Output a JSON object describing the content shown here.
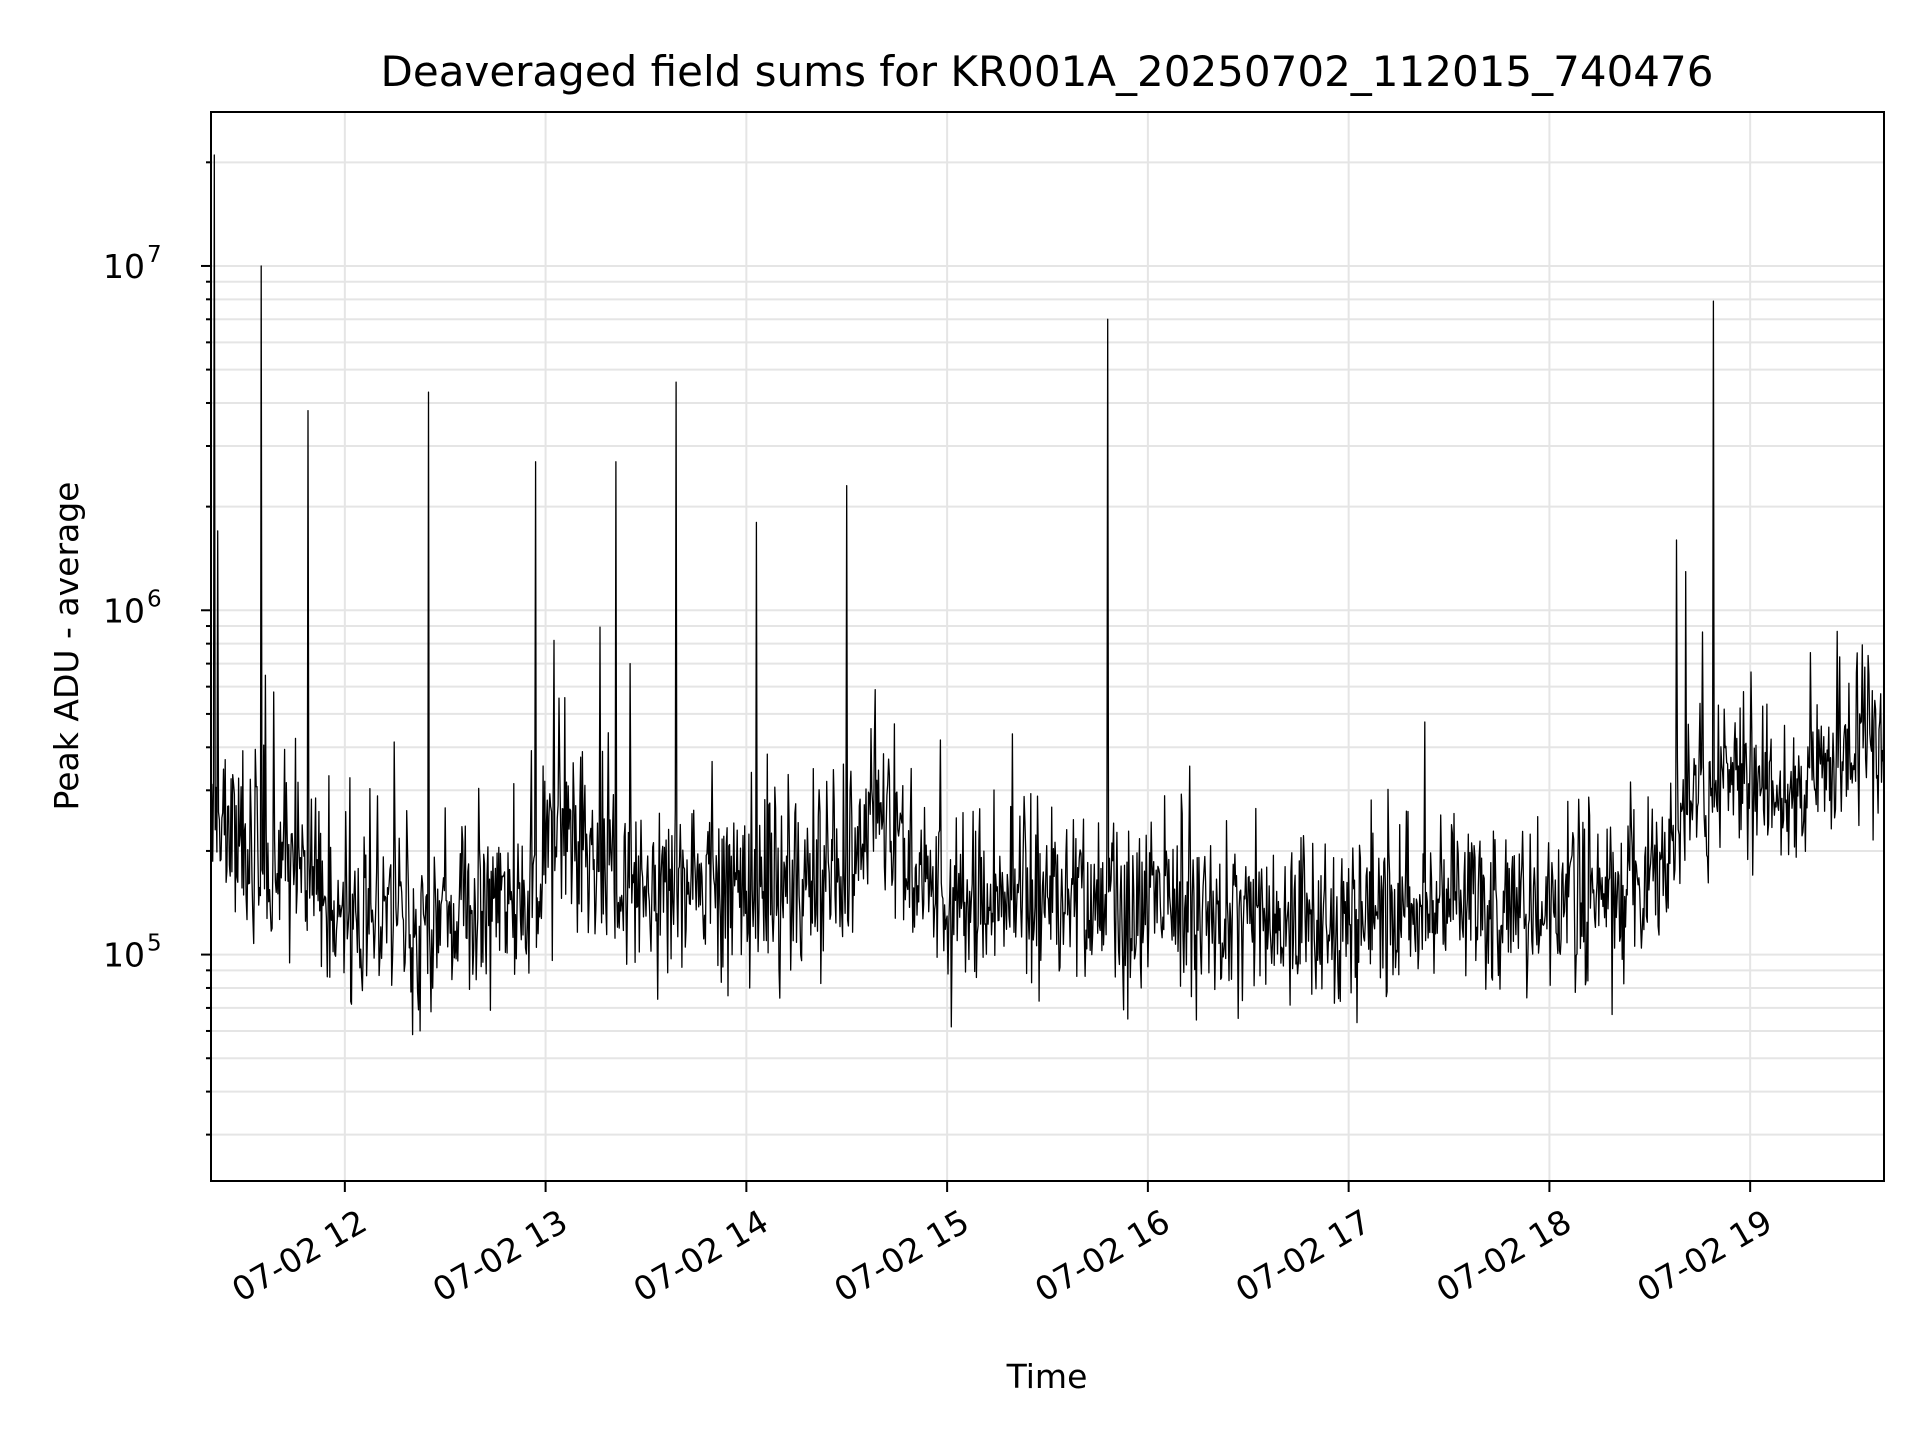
{
  "chart_data": {
    "type": "line",
    "title": "Deaveraged field sums for KR001A_20250702_112015_740476",
    "xlabel": "Time",
    "ylabel": "Peak ADU - average",
    "y_scale": "log",
    "x_tick_labels": [
      "07-02 12",
      "07-02 13",
      "07-02 14",
      "07-02 15",
      "07-02 16",
      "07-02 17",
      "07-02 18",
      "07-02 19"
    ],
    "y_tick_labels": [
      {
        "base": "10",
        "exp": "5",
        "value": 100000
      },
      {
        "base": "10",
        "exp": "6",
        "value": 1000000
      },
      {
        "base": "10",
        "exp": "7",
        "value": 10000000
      }
    ],
    "xlim": [
      "2025-07-02 11:20",
      "2025-07-02 19:40"
    ],
    "ylim": [
      22000,
      28000000
    ],
    "grid": true,
    "line_color": "#000000",
    "grid_color": "#e5e5e5",
    "series": [
      {
        "x_start": "2025-07-02 11:20",
        "x_end": "2025-07-02 19:40",
        "baseline": [
          [
            "2025-07-02 11:20",
            280000
          ],
          [
            "2025-07-02 11:35",
            180000
          ],
          [
            "2025-07-02 12:00",
            140000
          ],
          [
            "2025-07-02 12:30",
            130000
          ],
          [
            "2025-07-02 12:55",
            140000
          ],
          [
            "2025-07-02 13:05",
            280000
          ],
          [
            "2025-07-02 13:15",
            170000
          ],
          [
            "2025-07-02 13:40",
            160000
          ],
          [
            "2025-07-02 14:00",
            150000
          ],
          [
            "2025-07-02 14:30",
            170000
          ],
          [
            "2025-07-02 14:40",
            300000
          ],
          [
            "2025-07-02 14:50",
            170000
          ],
          [
            "2025-07-02 15:30",
            140000
          ],
          [
            "2025-07-02 16:30",
            130000
          ],
          [
            "2025-07-02 17:00",
            120000
          ],
          [
            "2025-07-02 17:30",
            150000
          ],
          [
            "2025-07-02 18:00",
            130000
          ],
          [
            "2025-07-02 18:30",
            170000
          ],
          [
            "2025-07-02 18:45",
            330000
          ],
          [
            "2025-07-02 19:15",
            300000
          ],
          [
            "2025-07-02 19:40",
            480000
          ]
        ],
        "spikes": [
          [
            "2025-07-02 11:21",
            21000000
          ],
          [
            "2025-07-02 11:22",
            1700000
          ],
          [
            "2025-07-02 11:35",
            10000000
          ],
          [
            "2025-07-02 11:49",
            3800000
          ],
          [
            "2025-07-02 12:25",
            4300000
          ],
          [
            "2025-07-02 12:57",
            2700000
          ],
          [
            "2025-07-02 13:21",
            2700000
          ],
          [
            "2025-07-02 13:39",
            4600000
          ],
          [
            "2025-07-02 14:03",
            1800000
          ],
          [
            "2025-07-02 14:30",
            2300000
          ],
          [
            "2025-07-02 15:48",
            7000000
          ],
          [
            "2025-07-02 18:38",
            1600000
          ],
          [
            "2025-07-02 18:49",
            7900000
          ]
        ]
      }
    ]
  }
}
